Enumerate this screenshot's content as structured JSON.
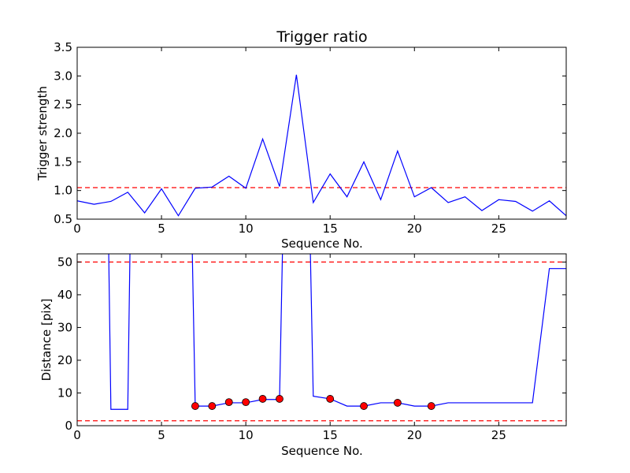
{
  "chart_data": [
    {
      "type": "line",
      "title": "Trigger ratio",
      "xlabel": "Sequence No.",
      "ylabel": "Trigger strength",
      "xlim": [
        0,
        29
      ],
      "ylim": [
        0.5,
        3.5
      ],
      "xticks": [
        "0",
        "5",
        "10",
        "15",
        "20",
        "25"
      ],
      "yticks": [
        "0.5",
        "1.0",
        "1.5",
        "2.0",
        "2.5",
        "3.0",
        "3.5"
      ],
      "grid": false,
      "series": [
        {
          "color": "#0000ff",
          "x": [
            0,
            1,
            2,
            3,
            4,
            5,
            6,
            7,
            8,
            9,
            10,
            11,
            12,
            13,
            14,
            15,
            16,
            17,
            18,
            19,
            20,
            21,
            22,
            23,
            24,
            25,
            26,
            27,
            28,
            29
          ],
          "y": [
            0.82,
            0.76,
            0.81,
            0.97,
            0.61,
            1.03,
            0.56,
            1.04,
            1.06,
            1.25,
            1.04,
            1.9,
            1.07,
            3.02,
            0.79,
            1.29,
            0.89,
            1.5,
            0.84,
            1.69,
            0.89,
            1.05,
            0.79,
            0.89,
            0.65,
            0.84,
            0.81,
            0.64,
            0.82,
            0.56
          ]
        }
      ],
      "reference_lines": [
        {
          "y": 1.05,
          "color": "#ff0000",
          "style": "dashed"
        }
      ]
    },
    {
      "type": "line",
      "title": "",
      "xlabel": "Sequence No.",
      "ylabel": "Distance [pix]",
      "xlim": [
        0,
        29
      ],
      "ylim": [
        0,
        52.5
      ],
      "xticks": [
        "0",
        "5",
        "10",
        "15",
        "20",
        "25"
      ],
      "yticks": [
        "0",
        "10",
        "20",
        "30",
        "40",
        "50"
      ],
      "grid": false,
      "series": [
        {
          "color": "#0000ff",
          "x": [
            1.85,
            2,
            3,
            3.15,
            6.8,
            7,
            8,
            9,
            10,
            11,
            12,
            12.2,
            13.8,
            14,
            15,
            16,
            17,
            18,
            19,
            20,
            21,
            22,
            23,
            24,
            25,
            26,
            27,
            28,
            29
          ],
          "y": [
            60,
            5,
            5,
            60,
            60,
            6,
            6,
            7,
            7,
            8,
            8,
            60,
            60,
            9,
            8.2,
            6,
            6,
            7,
            7,
            6,
            6,
            7,
            7,
            7,
            7,
            7,
            7,
            48,
            48
          ]
        }
      ],
      "markers": {
        "color": "#ff0000",
        "x": [
          7,
          8,
          9,
          10,
          11,
          12,
          15,
          17,
          19,
          21
        ],
        "y": [
          6,
          6,
          7.2,
          7.2,
          8.2,
          8.2,
          8.2,
          6,
          7,
          6
        ]
      },
      "reference_lines": [
        {
          "y": 50,
          "color": "#ff0000",
          "style": "dashed"
        },
        {
          "y": 1.5,
          "color": "#ff0000",
          "style": "dashed"
        }
      ]
    }
  ]
}
